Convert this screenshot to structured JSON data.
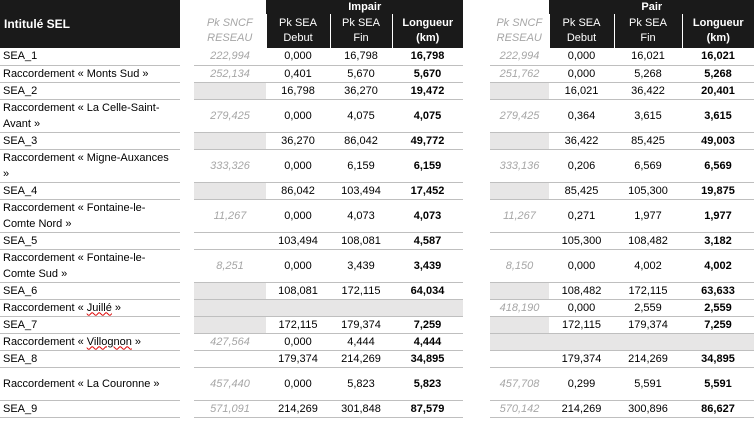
{
  "header": {
    "title": "Intitulé SEL",
    "impair_label": "Impair",
    "pair_label": "Pair",
    "col_sncf_1": "Pk SNCF",
    "col_sncf_2": "RESEAU",
    "col_debut_1": "Pk SEA",
    "col_debut_2": "Debut",
    "col_fin_1": "Pk SEA",
    "col_fin_2": "Fin",
    "col_len_1": "Longueur",
    "col_len_2": "(km)"
  },
  "rows": [
    {
      "label": "SEA_1",
      "i_sncf": "222,994",
      "i_deb": "0,000",
      "i_fin": "16,798",
      "i_len": "16,798",
      "p_sncf": "222,994",
      "p_deb": "0,000",
      "p_fin": "16,021",
      "p_len": "16,021"
    },
    {
      "label": "Raccordement « Monts Sud »",
      "i_sncf": "252,134",
      "i_deb": "0,401",
      "i_fin": "5,670",
      "i_len": "5,670",
      "p_sncf": "251,762",
      "p_deb": "0,000",
      "p_fin": "5,268",
      "p_len": "5,268"
    },
    {
      "label": "SEA_2",
      "i_sncf": "",
      "i_deb": "16,798",
      "i_fin": "36,270",
      "i_len": "19,472",
      "p_sncf": "",
      "p_deb": "16,021",
      "p_fin": "36,422",
      "p_len": "20,401"
    },
    {
      "label": "Raccordement « La Celle-Saint-Avant »",
      "i_sncf": "279,425",
      "i_deb": "0,000",
      "i_fin": "4,075",
      "i_len": "4,075",
      "p_sncf": "279,425",
      "p_deb": "0,364",
      "p_fin": "3,615",
      "p_len": "3,615"
    },
    {
      "label": "SEA_3",
      "i_sncf": "",
      "i_deb": "36,270",
      "i_fin": "86,042",
      "i_len": "49,772",
      "p_sncf": "",
      "p_deb": "36,422",
      "p_fin": "85,425",
      "p_len": "49,003"
    },
    {
      "label": "Raccordement « Migne-Auxances »",
      "i_sncf": "333,326",
      "i_deb": "0,000",
      "i_fin": "6,159",
      "i_len": "6,159",
      "p_sncf": "333,136",
      "p_deb": "0,206",
      "p_fin": "6,569",
      "p_len": "6,569"
    },
    {
      "label": "SEA_4",
      "i_sncf": "",
      "i_deb": "86,042",
      "i_fin": "103,494",
      "i_len": "17,452",
      "p_sncf": "",
      "p_deb": "85,425",
      "p_fin": "105,300",
      "p_len": "19,875"
    },
    {
      "label": "Raccordement « Fontaine-le-Comte Nord »",
      "i_sncf": "11,267",
      "i_deb": "0,000",
      "i_fin": "4,073",
      "i_len": "4,073",
      "p_sncf": "11,267",
      "p_deb": "0,271",
      "p_fin": "1,977",
      "p_len": "1,977"
    },
    {
      "label": "SEA_5",
      "i_sncf": "",
      "i_deb": "103,494",
      "i_fin": "108,081",
      "i_len": "4,587",
      "p_sncf": "",
      "p_deb": "105,300",
      "p_fin": "108,482",
      "p_len": "3,182"
    },
    {
      "label": "Raccordement « Fontaine-le-Comte Sud »",
      "i_sncf": "8,251",
      "i_deb": "0,000",
      "i_fin": "3,439",
      "i_len": "3,439",
      "p_sncf": "8,150",
      "p_deb": "0,000",
      "p_fin": "4,002",
      "p_len": "4,002"
    },
    {
      "label": "SEA_6",
      "i_sncf": "",
      "i_deb": "108,081",
      "i_fin": "172,115",
      "i_len": "64,034",
      "p_sncf": "",
      "p_deb": "108,482",
      "p_fin": "172,115",
      "p_len": "63,633"
    },
    {
      "label_a": "Raccordement « ",
      "label_u": "Juillé",
      "label_b": " »",
      "i_sncf": "",
      "i_deb": "",
      "i_fin": "",
      "i_len": "",
      "p_sncf": "418,190",
      "p_deb": "0,000",
      "p_fin": "2,559",
      "p_len": "2,559"
    },
    {
      "label": "SEA_7",
      "i_sncf": "",
      "i_deb": "172,115",
      "i_fin": "179,374",
      "i_len": "7,259",
      "p_sncf": "",
      "p_deb": "172,115",
      "p_fin": "179,374",
      "p_len": "7,259"
    },
    {
      "label_a": "Raccordement « ",
      "label_u": "Villognon",
      "label_b": " »",
      "i_sncf": "427,564",
      "i_deb": "0,000",
      "i_fin": "4,444",
      "i_len": "4,444",
      "p_sncf": "",
      "p_deb": "",
      "p_fin": "",
      "p_len": ""
    },
    {
      "label": "SEA_8",
      "i_sncf": "",
      "i_deb": "179,374",
      "i_fin": "214,269",
      "i_len": "34,895",
      "p_sncf": "",
      "p_deb": "179,374",
      "p_fin": "214,269",
      "p_len": "34,895"
    },
    {
      "label": "Raccordement « La Couronne »",
      "i_sncf": "457,440",
      "i_deb": "0,000",
      "i_fin": "5,823",
      "i_len": "5,823",
      "p_sncf": "457,708",
      "p_deb": "0,299",
      "p_fin": "5,591",
      "p_len": "5,591"
    },
    {
      "label": "SEA_9",
      "i_sncf": "571,091",
      "i_deb": "214,269",
      "i_fin": "301,848",
      "i_len": "87,579",
      "p_sncf": "570,142",
      "p_deb": "214,269",
      "p_fin": "300,896",
      "p_len": "86,627"
    }
  ]
}
